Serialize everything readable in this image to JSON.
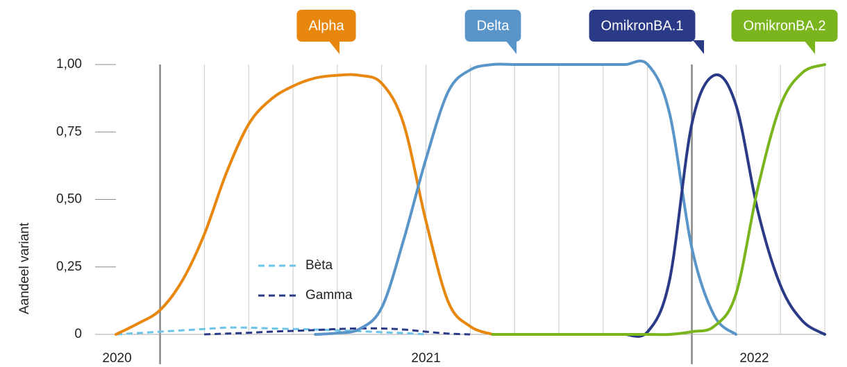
{
  "chart_data": {
    "type": "line",
    "y_label": "Aandeel variant",
    "year_labels": [
      "2020",
      "2021",
      "2022"
    ],
    "x": [
      2020.917,
      2020.958,
      2021.0,
      2021.042,
      2021.083,
      2021.125,
      2021.167,
      2021.208,
      2021.25,
      2021.292,
      2021.333,
      2021.375,
      2021.417,
      2021.458,
      2021.5,
      2021.542,
      2021.583,
      2021.625,
      2021.667,
      2021.708,
      2021.75,
      2021.792,
      2021.833,
      2021.875,
      2021.917,
      2021.958,
      2022.0,
      2022.042,
      2022.083,
      2022.125,
      2022.167,
      2022.208,
      2022.25
    ],
    "xlim": [
      2020.917,
      2022.25
    ],
    "ylim": [
      0,
      1
    ],
    "yticks": [
      {
        "value": 1,
        "label": "1,00"
      },
      {
        "value": 0.75,
        "label": "0,75"
      },
      {
        "value": 0.5,
        "label": "0,50"
      },
      {
        "value": 0.25,
        "label": "0,25"
      },
      0
    ],
    "grid": true,
    "series": [
      {
        "name": "Bèta",
        "color": "#6cc5e8",
        "dash": true,
        "values": [
          0.0,
          0.005,
          0.01,
          0.015,
          0.02,
          0.025,
          0.025,
          0.022,
          0.02,
          0.018,
          0.015,
          0.012,
          0.008,
          0.005,
          0.0,
          null,
          null,
          null,
          null,
          null,
          null,
          null,
          null,
          null,
          null,
          null,
          null,
          null,
          null,
          null,
          null,
          null,
          null
        ]
      },
      {
        "name": "Gamma",
        "color": "#2b3a86",
        "dash": true,
        "values": [
          null,
          null,
          null,
          null,
          0.0,
          0.003,
          0.006,
          0.01,
          0.013,
          0.016,
          0.02,
          0.022,
          0.022,
          0.018,
          0.01,
          0.003,
          0.0,
          null,
          null,
          null,
          null,
          null,
          null,
          null,
          null,
          null,
          null,
          null,
          null,
          null,
          null,
          null,
          null
        ]
      },
      {
        "name": "Alpha",
        "color": "#e8870e",
        "dash": false,
        "values": [
          0.0,
          0.04,
          0.09,
          0.2,
          0.37,
          0.6,
          0.78,
          0.87,
          0.92,
          0.95,
          0.96,
          0.96,
          0.93,
          0.78,
          0.42,
          0.12,
          0.03,
          0.0,
          null,
          null,
          null,
          null,
          null,
          null,
          null,
          null,
          null,
          null,
          null,
          null,
          null,
          null,
          null
        ]
      },
      {
        "name": "Delta",
        "color": "#5a95c9",
        "dash": false,
        "values": [
          null,
          null,
          null,
          null,
          null,
          null,
          null,
          null,
          null,
          0.0,
          0.005,
          0.02,
          0.1,
          0.35,
          0.65,
          0.9,
          0.98,
          1.0,
          1.0,
          1.0,
          1.0,
          1.0,
          1.0,
          1.0,
          1.0,
          0.82,
          0.32,
          0.07,
          0.0,
          null,
          null,
          null,
          null
        ]
      },
      {
        "name": "OmikronBA.1",
        "color": "#2b3a86",
        "dash": false,
        "values": [
          null,
          null,
          null,
          null,
          null,
          null,
          null,
          null,
          null,
          null,
          null,
          null,
          null,
          null,
          null,
          null,
          null,
          null,
          null,
          null,
          null,
          null,
          null,
          0.0,
          0.01,
          0.2,
          0.78,
          0.96,
          0.85,
          0.45,
          0.18,
          0.05,
          0.0
        ]
      },
      {
        "name": "OmikronBA.2",
        "color": "#7ab51d",
        "dash": false,
        "values": [
          null,
          null,
          null,
          null,
          null,
          null,
          null,
          null,
          null,
          null,
          null,
          null,
          null,
          null,
          null,
          null,
          null,
          0.0,
          0.0,
          0.0,
          0.0,
          0.0,
          0.0,
          0.0,
          0.0,
          0.0,
          0.01,
          0.03,
          0.15,
          0.55,
          0.85,
          0.97,
          1.0
        ]
      }
    ]
  }
}
